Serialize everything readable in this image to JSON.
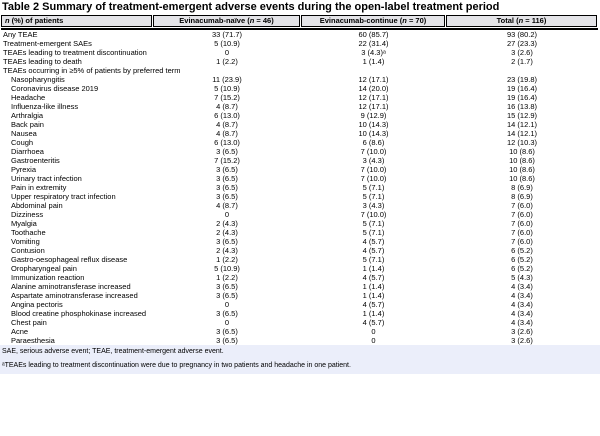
{
  "title": "Table 2 Summary of treatment-emergent adverse events during the open-label treatment period",
  "colors": {
    "header_bg": "#e4e4e8",
    "footnote_bg": "#ebeefa",
    "rule": "#000000"
  },
  "table": {
    "columns": [
      {
        "pre": "",
        "italic": "n",
        "post": " (%) of patients"
      },
      {
        "pre": "Evinacumab-naïve (",
        "italic": "n",
        "post": " = 46)"
      },
      {
        "pre": "Evinacumab-continue (",
        "italic": "n",
        "post": " = 70)"
      },
      {
        "pre": "Total (",
        "italic": "n",
        "post": " = 116)"
      }
    ],
    "rows": [
      {
        "label": "Any TEAE",
        "indent": false,
        "values": [
          "33 (71.7)",
          "60 (85.7)",
          "93 (80.2)"
        ]
      },
      {
        "label": "Treatment-emergent SAEs",
        "indent": false,
        "values": [
          "5 (10.9)",
          "22 (31.4)",
          "27 (23.3)"
        ]
      },
      {
        "label": "TEAEs leading to treatment discontinuation",
        "indent": false,
        "values": [
          "0",
          "3 (4.3)ᵃ",
          "3 (2.6)"
        ]
      },
      {
        "label": "TEAEs leading to death",
        "indent": false,
        "values": [
          "1 (2.2)",
          "1 (1.4)",
          "2 (1.7)"
        ]
      },
      {
        "label": "TEAEs occurring in ≥5% of patients by preferred term",
        "indent": false,
        "values": [
          "",
          "",
          ""
        ]
      },
      {
        "label": "Nasopharyngitis",
        "indent": true,
        "values": [
          "11 (23.9)",
          "12 (17.1)",
          "23 (19.8)"
        ]
      },
      {
        "label": "Coronavirus disease 2019",
        "indent": true,
        "values": [
          "5 (10.9)",
          "14 (20.0)",
          "19 (16.4)"
        ]
      },
      {
        "label": "Headache",
        "indent": true,
        "values": [
          "7 (15.2)",
          "12 (17.1)",
          "19 (16.4)"
        ]
      },
      {
        "label": "Influenza-like illness",
        "indent": true,
        "values": [
          "4 (8.7)",
          "12 (17.1)",
          "16 (13.8)"
        ]
      },
      {
        "label": "Arthralgia",
        "indent": true,
        "values": [
          "6 (13.0)",
          "9 (12.9)",
          "15 (12.9)"
        ]
      },
      {
        "label": "Back pain",
        "indent": true,
        "values": [
          "4 (8.7)",
          "10 (14.3)",
          "14 (12.1)"
        ]
      },
      {
        "label": "Nausea",
        "indent": true,
        "values": [
          "4 (8.7)",
          "10 (14.3)",
          "14 (12.1)"
        ]
      },
      {
        "label": "Cough",
        "indent": true,
        "values": [
          "6 (13.0)",
          "6 (8.6)",
          "12 (10.3)"
        ]
      },
      {
        "label": "Diarrhoea",
        "indent": true,
        "values": [
          "3 (6.5)",
          "7 (10.0)",
          "10 (8.6)"
        ]
      },
      {
        "label": "Gastroenteritis",
        "indent": true,
        "values": [
          "7 (15.2)",
          "3 (4.3)",
          "10 (8.6)"
        ]
      },
      {
        "label": "Pyrexia",
        "indent": true,
        "values": [
          "3 (6.5)",
          "7 (10.0)",
          "10 (8.6)"
        ]
      },
      {
        "label": "Urinary tract infection",
        "indent": true,
        "values": [
          "3 (6.5)",
          "7 (10.0)",
          "10 (8.6)"
        ]
      },
      {
        "label": "Pain in extremity",
        "indent": true,
        "values": [
          "3 (6.5)",
          "5 (7.1)",
          "8 (6.9)"
        ]
      },
      {
        "label": "Upper respiratory tract infection",
        "indent": true,
        "values": [
          "3 (6.5)",
          "5 (7.1)",
          "8 (6.9)"
        ]
      },
      {
        "label": "Abdominal pain",
        "indent": true,
        "values": [
          "4 (8.7)",
          "3 (4.3)",
          "7 (6.0)"
        ]
      },
      {
        "label": "Dizziness",
        "indent": true,
        "values": [
          "0",
          "7 (10.0)",
          "7 (6.0)"
        ]
      },
      {
        "label": "Myalgia",
        "indent": true,
        "values": [
          "2 (4.3)",
          "5 (7.1)",
          "7 (6.0)"
        ]
      },
      {
        "label": "Toothache",
        "indent": true,
        "values": [
          "2 (4.3)",
          "5 (7.1)",
          "7 (6.0)"
        ]
      },
      {
        "label": "Vomiting",
        "indent": true,
        "values": [
          "3 (6.5)",
          "4 (5.7)",
          "7 (6.0)"
        ]
      },
      {
        "label": "Contusion",
        "indent": true,
        "values": [
          "2 (4.3)",
          "4 (5.7)",
          "6 (5.2)"
        ]
      },
      {
        "label": "Gastro-oesophageal reflux disease",
        "indent": true,
        "values": [
          "1 (2.2)",
          "5 (7.1)",
          "6 (5.2)"
        ]
      },
      {
        "label": "Oropharyngeal pain",
        "indent": true,
        "values": [
          "5 (10.9)",
          "1 (1.4)",
          "6 (5.2)"
        ]
      },
      {
        "label": "Immunization reaction",
        "indent": true,
        "values": [
          "1 (2.2)",
          "4 (5.7)",
          "5 (4.3)"
        ]
      },
      {
        "label": "Alanine aminotransferase increased",
        "indent": true,
        "values": [
          "3 (6.5)",
          "1 (1.4)",
          "4 (3.4)"
        ]
      },
      {
        "label": "Aspartate aminotransferase increased",
        "indent": true,
        "values": [
          "3 (6.5)",
          "1 (1.4)",
          "4 (3.4)"
        ]
      },
      {
        "label": "Angina pectoris",
        "indent": true,
        "values": [
          "0",
          "4 (5.7)",
          "4 (3.4)"
        ]
      },
      {
        "label": "Blood creatine phosphokinase increased",
        "indent": true,
        "values": [
          "3 (6.5)",
          "1 (1.4)",
          "4 (3.4)"
        ]
      },
      {
        "label": "Chest pain",
        "indent": true,
        "values": [
          "0",
          "4 (5.7)",
          "4 (3.4)"
        ]
      },
      {
        "label": "Acne",
        "indent": true,
        "values": [
          "3 (6.5)",
          "0",
          "3 (2.6)"
        ]
      },
      {
        "label": "Paraesthesia",
        "indent": true,
        "values": [
          "3 (6.5)",
          "0",
          "3 (2.6)"
        ]
      }
    ]
  },
  "footnotes": [
    "SAE, serious adverse event; TEAE, treatment-emergent adverse event.",
    "ᵃTEAEs leading to treatment discontinuation were due to pregnancy in two patients and headache in one patient."
  ]
}
